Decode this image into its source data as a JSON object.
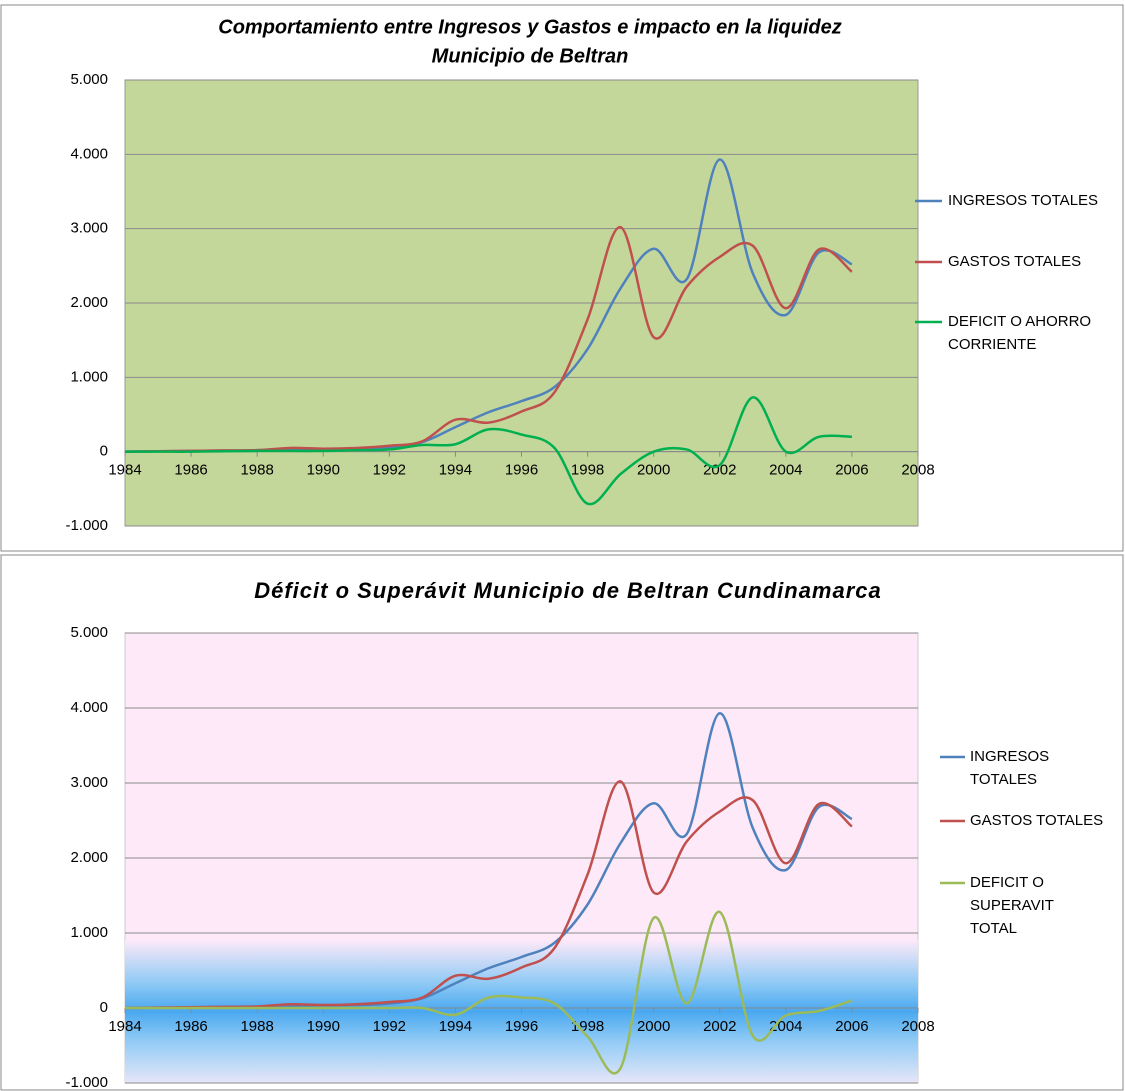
{
  "chart_data": [
    {
      "type": "line",
      "title": [
        "Comportamiento entre Ingresos y  Gastos e impacto en la liquidez",
        "Municipio de Beltran"
      ],
      "x": [
        1984,
        1985,
        1986,
        1987,
        1988,
        1989,
        1990,
        1991,
        1992,
        1993,
        1994,
        1995,
        1996,
        1997,
        1998,
        1999,
        2000,
        2001,
        2002,
        2003,
        2004,
        2005,
        2006
      ],
      "series": [
        {
          "name": "INGRESOS TOTALES",
          "color": "#4f81bd",
          "values": [
            0,
            5,
            10,
            15,
            20,
            30,
            35,
            40,
            60,
            130,
            330,
            530,
            680,
            870,
            1380,
            2200,
            2730,
            2320,
            3930,
            2400,
            1840,
            2680,
            2520
          ]
        },
        {
          "name": "GASTOS TOTALES",
          "color": "#c0504d",
          "values": [
            0,
            5,
            10,
            15,
            20,
            50,
            40,
            50,
            80,
            140,
            430,
            390,
            540,
            800,
            1780,
            3020,
            1540,
            2220,
            2620,
            2770,
            1930,
            2720,
            2420
          ]
        },
        {
          "name": "DEFICIT O AHORRO CORRIENTE",
          "color": "#00b050",
          "values": [
            0,
            0,
            0,
            5,
            10,
            10,
            10,
            20,
            30,
            90,
            100,
            300,
            230,
            50,
            -700,
            -300,
            0,
            30,
            -180,
            730,
            0,
            200,
            200
          ]
        }
      ],
      "xlim": [
        1984,
        2008
      ],
      "xticks": [
        1984,
        1986,
        1988,
        1990,
        1992,
        1994,
        1996,
        1998,
        2000,
        2002,
        2004,
        2006,
        2008
      ],
      "ylim": [
        -1000,
        5000
      ],
      "yticks": [
        {
          "value": -1000,
          "label": "-1.000"
        },
        0,
        {
          "value": 1000,
          "label": "1.000"
        },
        {
          "value": 2000,
          "label": "2.000"
        },
        {
          "value": 3000,
          "label": "3.000"
        },
        {
          "value": 4000,
          "label": "4.000"
        },
        {
          "value": 5000,
          "label": "5.000"
        }
      ],
      "grid": true,
      "legend": "right"
    },
    {
      "type": "line",
      "title": [
        "Déficit o Superávit Municipio de Beltran Cundinamarca"
      ],
      "x": [
        1984,
        1985,
        1986,
        1987,
        1988,
        1989,
        1990,
        1991,
        1992,
        1993,
        1994,
        1995,
        1996,
        1997,
        1998,
        1999,
        2000,
        2001,
        2002,
        2003,
        2004,
        2005,
        2006
      ],
      "series": [
        {
          "name": "INGRESOS TOTALES",
          "color": "#4f81bd",
          "values": [
            0,
            5,
            10,
            15,
            20,
            30,
            35,
            40,
            60,
            130,
            330,
            530,
            680,
            870,
            1380,
            2200,
            2730,
            2320,
            3930,
            2400,
            1840,
            2680,
            2520
          ]
        },
        {
          "name": "GASTOS TOTALES",
          "color": "#c0504d",
          "values": [
            0,
            5,
            10,
            15,
            20,
            50,
            40,
            50,
            80,
            140,
            430,
            390,
            540,
            800,
            1780,
            3020,
            1540,
            2220,
            2620,
            2770,
            1930,
            2720,
            2420
          ]
        },
        {
          "name": "DEFICIT O SUPERAVIT TOTAL",
          "color": "#9bbb59",
          "values": [
            0,
            0,
            0,
            0,
            0,
            0,
            0,
            0,
            0,
            0,
            -90,
            140,
            140,
            60,
            -380,
            -800,
            1200,
            60,
            1280,
            -370,
            -100,
            -40,
            100
          ]
        }
      ],
      "xlim": [
        1984,
        2008
      ],
      "xticks": [
        1984,
        1986,
        1988,
        1990,
        1992,
        1994,
        1996,
        1998,
        2000,
        2002,
        2004,
        2006,
        2008
      ],
      "ylim": [
        -1000,
        5000
      ],
      "yticks": [
        {
          "value": -1000,
          "label": "-1.000"
        },
        0,
        {
          "value": 1000,
          "label": "1.000"
        },
        {
          "value": 2000,
          "label": "2.000"
        },
        {
          "value": 3000,
          "label": "3.000"
        },
        {
          "value": 4000,
          "label": "4.000"
        },
        {
          "value": 5000,
          "label": "5.000"
        }
      ],
      "grid": true,
      "legend": "right"
    }
  ]
}
